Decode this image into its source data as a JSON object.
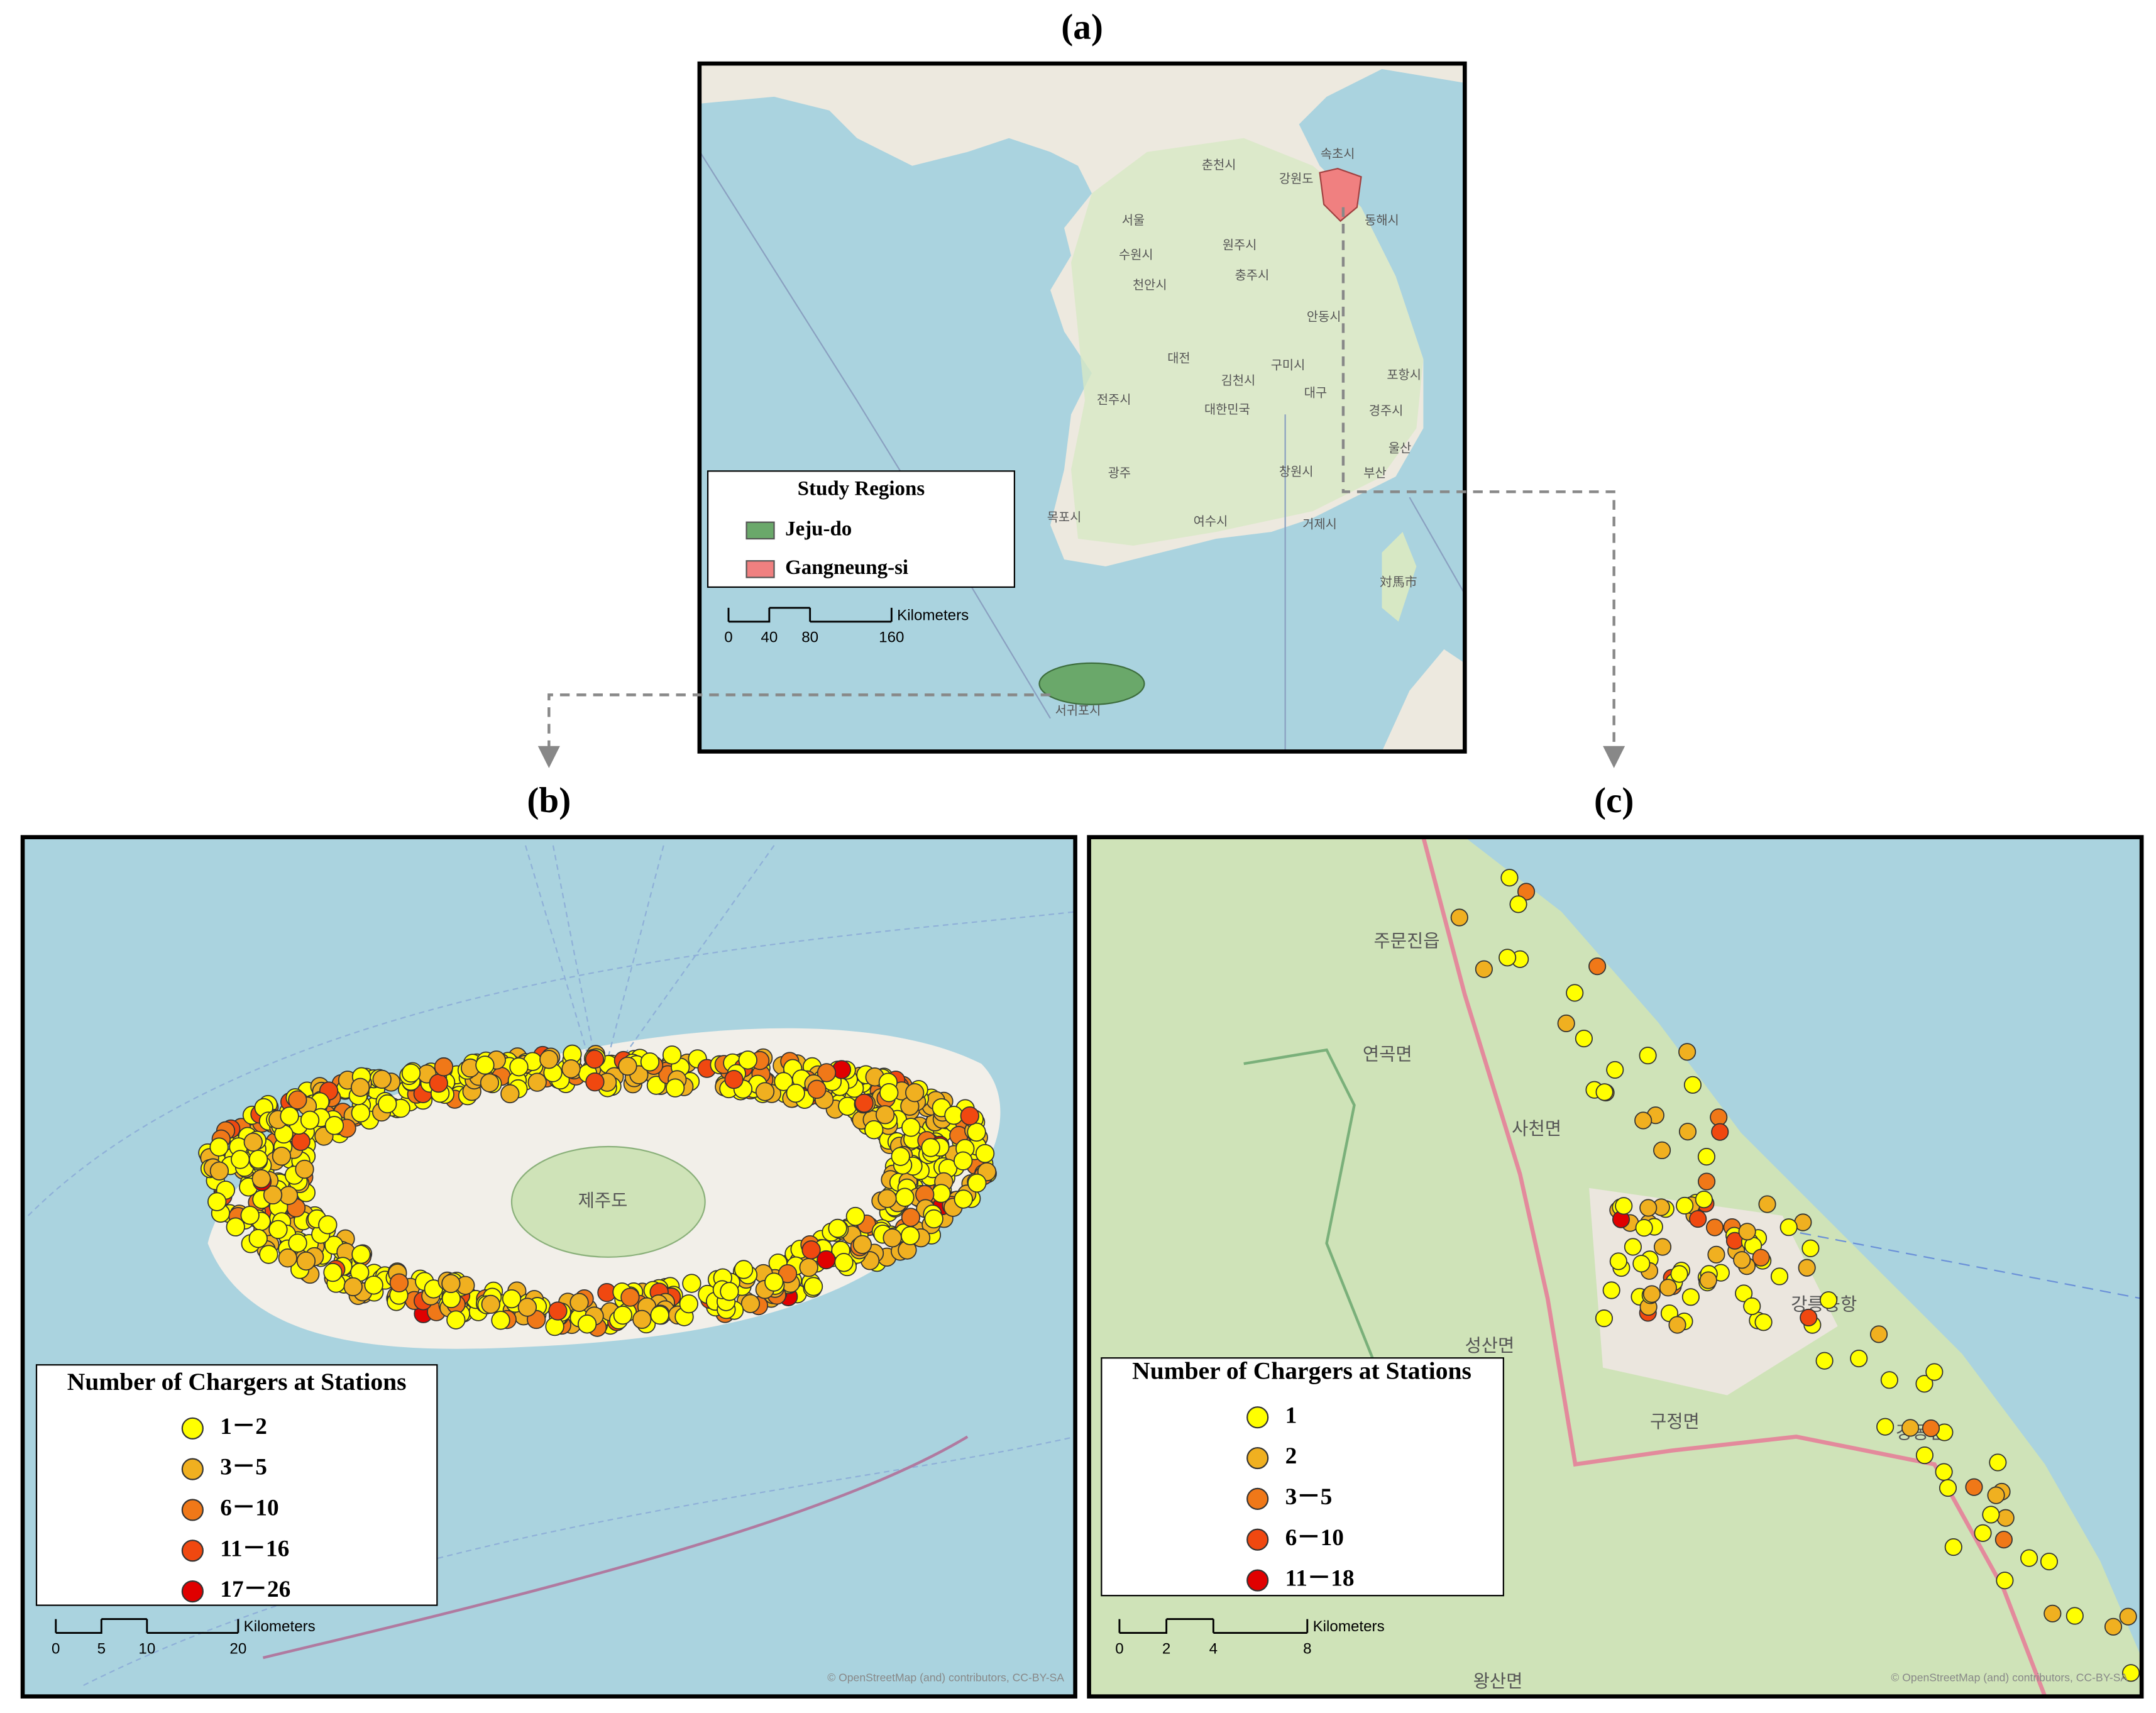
{
  "panels": [
    "(a)",
    "(b)",
    "(c)"
  ],
  "map_a": {
    "legend": {
      "title": "Study Regions",
      "items": [
        {
          "name": "Jeju-do",
          "color": "#6aa86a"
        },
        {
          "name": "Gangneung-si",
          "color": "#f08080"
        }
      ]
    },
    "scale": {
      "unit": "Kilometers",
      "ticks": [
        0,
        40,
        80,
        160
      ]
    },
    "places": [
      "서울",
      "수원시",
      "천안시",
      "대전",
      "충주시",
      "춘천시",
      "원주시",
      "강원도",
      "속초시",
      "동해시",
      "안동시",
      "대구",
      "구미시",
      "김천시",
      "포항시",
      "경주시",
      "울산",
      "부산",
      "창원시",
      "대한민국",
      "전주시",
      "광주",
      "목포시",
      "여수시",
      "거제시",
      "서귀포시",
      "対馬市"
    ]
  },
  "map_b": {
    "legend": {
      "title": "Number of Chargers at Stations",
      "items": [
        {
          "name": "1－2",
          "color": "#ffff00"
        },
        {
          "name": "3－5",
          "color": "#f0b020"
        },
        {
          "name": "6－10",
          "color": "#f07818"
        },
        {
          "name": "11－16",
          "color": "#f04810"
        },
        {
          "name": "17－26",
          "color": "#e00000"
        }
      ]
    },
    "scale": {
      "unit": "Kilometers",
      "ticks": [
        0,
        5,
        10,
        20
      ]
    },
    "places": [
      "제주도"
    ],
    "attribution": "© OpenStreetMap (and) contributors, CC-BY-SA"
  },
  "map_c": {
    "legend": {
      "title": "Number of Chargers at Stations",
      "items": [
        {
          "name": "1",
          "color": "#ffff00"
        },
        {
          "name": "2",
          "color": "#f0b020"
        },
        {
          "name": "3－5",
          "color": "#f07818"
        },
        {
          "name": "6－10",
          "color": "#f04810"
        },
        {
          "name": "11－18",
          "color": "#e00000"
        }
      ]
    },
    "scale": {
      "unit": "Kilometers",
      "ticks": [
        0,
        2,
        4,
        8
      ]
    },
    "places": [
      "주문진읍",
      "연곡면",
      "사천면",
      "성산면",
      "구정면",
      "강동면",
      "왕산면",
      "강릉공항"
    ],
    "attribution": "© OpenStreetMap (and) contributors, CC-BY-SA"
  }
}
